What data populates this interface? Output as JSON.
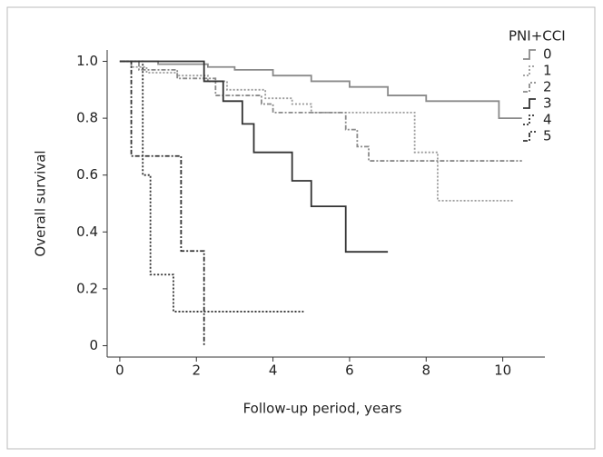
{
  "chart_data": {
    "type": "survival-step",
    "xlabel": "Follow-up period, years",
    "ylabel": "Overall survival",
    "legend_title": "PNI+CCI",
    "legend": "upper right",
    "xlim": [
      -0.33,
      11.1
    ],
    "ylim": [
      -0.04,
      1.04
    ],
    "xticks": [
      0,
      2,
      4,
      6,
      8,
      10
    ],
    "yticks": [
      0,
      0.2,
      0.4,
      0.6,
      0.8,
      {
        "value": 1,
        "label": "1.0"
      }
    ],
    "series": [
      {
        "name": "0",
        "color": "#8a8a8a",
        "style": "solid",
        "x": [
          0,
          1,
          2.3,
          3,
          4,
          5,
          6,
          7,
          8,
          9.9,
          10.5
        ],
        "values": [
          1,
          0.99,
          0.98,
          0.97,
          0.95,
          0.93,
          0.91,
          0.88,
          0.86,
          0.8,
          0.8
        ]
      },
      {
        "name": "1",
        "color": "#9a9a9a",
        "style": "dotted",
        "x": [
          0,
          0.3,
          0.7,
          1.5,
          2.3,
          2.8,
          3.8,
          4.5,
          5,
          7.7,
          8.3,
          10.3
        ],
        "values": [
          1,
          0.98,
          0.96,
          0.95,
          0.93,
          0.9,
          0.87,
          0.85,
          0.82,
          0.68,
          0.51,
          0.51
        ]
      },
      {
        "name": "2",
        "color": "#8a8a8a",
        "style": "dashed",
        "x": [
          0,
          0.5,
          1.5,
          2.5,
          3.7,
          4,
          5.9,
          6.2,
          6.5,
          10.5
        ],
        "values": [
          1,
          0.97,
          0.94,
          0.88,
          0.85,
          0.82,
          0.76,
          0.7,
          0.65,
          0.65
        ]
      },
      {
        "name": "3",
        "color": "#333333",
        "style": "solid",
        "x": [
          0,
          2.2,
          2.7,
          3.2,
          3.5,
          4.5,
          5,
          5.9,
          7
        ],
        "values": [
          1,
          0.93,
          0.86,
          0.78,
          0.68,
          0.58,
          0.49,
          0.33,
          0.33
        ]
      },
      {
        "name": "4",
        "color": "#333333",
        "style": "dotted",
        "x": [
          0,
          0.6,
          0.8,
          1.4,
          4.8
        ],
        "values": [
          1,
          0.6,
          0.25,
          0.12,
          0.12
        ]
      },
      {
        "name": "5",
        "color": "#333333",
        "style": "dashed",
        "x": [
          0,
          0.3,
          1.6,
          2.2,
          2.2
        ],
        "values": [
          1,
          0.667,
          0.333,
          0,
          0
        ]
      }
    ]
  }
}
